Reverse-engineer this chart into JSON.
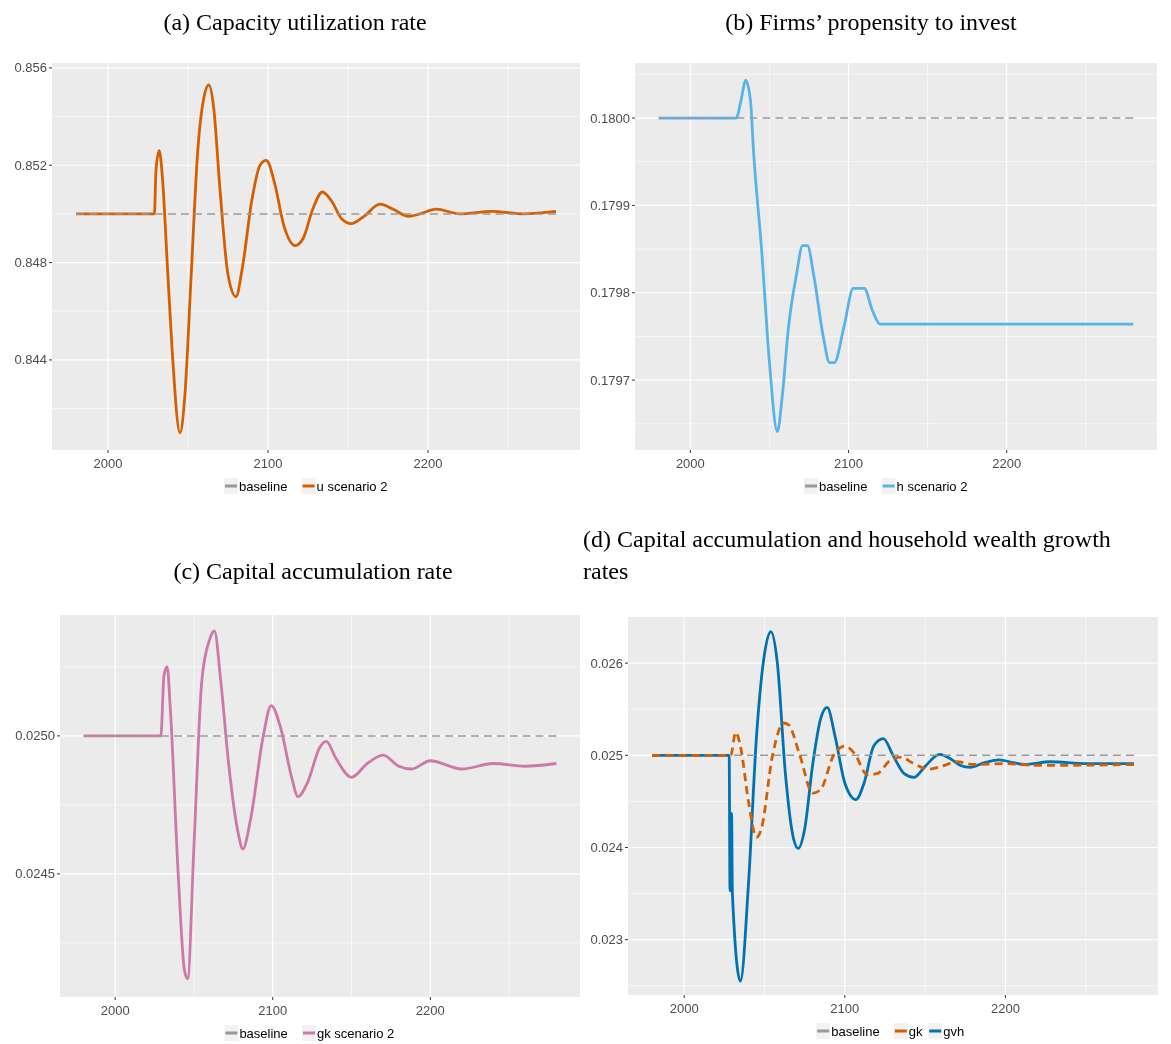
{
  "chart_data": [
    {
      "type": "line",
      "title": "(a) Capacity utilization rate",
      "xlim": [
        1965,
        2295
      ],
      "xticks": [
        2000,
        2100,
        2200
      ],
      "ylim": [
        0.8403,
        0.8562
      ],
      "yticks": [
        0.844,
        0.848,
        0.852,
        0.856
      ],
      "grid": true,
      "legend": "bottom",
      "series": [
        {
          "name": "baseline",
          "color": "#999999",
          "line_style": "dashed",
          "x": [
            1980,
            2280
          ],
          "values": [
            0.85,
            0.85
          ]
        },
        {
          "name": "u scenario 2",
          "color": "#d55e00",
          "line_style": "solid",
          "x": [
            1980,
            2029,
            2030,
            2032,
            2034,
            2037,
            2040,
            2045,
            2048,
            2052,
            2056,
            2060,
            2063,
            2066,
            2070,
            2075,
            2080,
            2084,
            2090,
            2095,
            2099,
            2104,
            2110,
            2117,
            2122,
            2128,
            2134,
            2140,
            2146,
            2152,
            2160,
            2170,
            2178,
            2188,
            2195,
            2205,
            2220,
            2240,
            2260,
            2280
          ],
          "values": [
            0.85,
            0.85,
            0.8518,
            0.8526,
            0.8515,
            0.848,
            0.8445,
            0.841,
            0.8425,
            0.8475,
            0.8525,
            0.8548,
            0.8553,
            0.8544,
            0.851,
            0.8475,
            0.8466,
            0.8478,
            0.8506,
            0.852,
            0.8522,
            0.8513,
            0.8495,
            0.8487,
            0.849,
            0.8502,
            0.8509,
            0.8505,
            0.8498,
            0.8496,
            0.8499,
            0.8504,
            0.8502,
            0.8499,
            0.85,
            0.8502,
            0.85,
            0.8501,
            0.85,
            0.8501
          ]
        }
      ]
    },
    {
      "type": "line",
      "title": "(b) Firms’ propensity to invest",
      "xlim": [
        1965,
        2295
      ],
      "xticks": [
        2000,
        2100,
        2200
      ],
      "ylim": [
        0.17962,
        0.180063
      ],
      "yticks": [
        0.1797,
        0.1798,
        0.1799,
        {
          "value": 0.18,
          "label": "0.1800"
        }
      ],
      "grid": true,
      "legend": "bottom",
      "series": [
        {
          "name": "baseline",
          "color": "#999999",
          "line_style": "dashed",
          "x": [
            1980,
            2280
          ],
          "values": [
            0.18,
            0.18
          ]
        },
        {
          "name": "h scenario 2",
          "color": "#56b4e9",
          "line_style": "solid",
          "x": [
            1980,
            2029,
            2032,
            2035,
            2038,
            2040,
            2045,
            2050,
            2055,
            2058,
            2062,
            2067,
            2071,
            2074,
            2078,
            2084,
            2088,
            2091,
            2097,
            2103,
            2110,
            2115,
            2120,
            2280
          ],
          "values": [
            0.18,
            0.18,
            0.18002,
            0.180043,
            0.18002,
            0.17996,
            0.17985,
            0.17972,
            0.179641,
            0.17968,
            0.17976,
            0.17982,
            0.179854,
            0.179854,
            0.17982,
            0.17975,
            0.17972,
            0.17972,
            0.17976,
            0.179805,
            0.179805,
            0.17978,
            0.179764,
            0.179764
          ]
        }
      ]
    },
    {
      "type": "line",
      "title": "(c) Capital accumulation rate",
      "xlim": [
        1965,
        2295
      ],
      "xticks": [
        2000,
        2100,
        2200
      ],
      "ylim": [
        0.024054,
        0.025438
      ],
      "yticks": [
        0.0245,
        {
          "value": 0.025,
          "label": "0.0250"
        }
      ],
      "grid": true,
      "legend": "bottom",
      "series": [
        {
          "name": "baseline",
          "color": "#999999",
          "line_style": "dashed",
          "x": [
            1980,
            2280
          ],
          "values": [
            0.025,
            0.025
          ]
        },
        {
          "name": "gk scenario 2",
          "color": "#cc79a7",
          "line_style": "solid",
          "x": [
            1980,
            2029,
            2031,
            2033,
            2035,
            2040,
            2044,
            2046,
            2050,
            2055,
            2060,
            2063,
            2067,
            2072,
            2078,
            2081,
            2086,
            2094,
            2099,
            2105,
            2112,
            2116,
            2122,
            2130,
            2134,
            2140,
            2150,
            2160,
            2170,
            2180,
            2188,
            2200,
            2220,
            2240,
            2260,
            2280
          ],
          "values": [
            0.025,
            0.025,
            0.02522,
            0.02525,
            0.0251,
            0.0245,
            0.02415,
            0.02412,
            0.0246,
            0.0252,
            0.02535,
            0.02538,
            0.0252,
            0.0249,
            0.02465,
            0.02459,
            0.0247,
            0.025,
            0.02511,
            0.02503,
            0.02485,
            0.02478,
            0.02483,
            0.02496,
            0.02498,
            0.02492,
            0.02485,
            0.0249,
            0.02493,
            0.02489,
            0.02488,
            0.02491,
            0.02488,
            0.0249,
            0.02489,
            0.0249
          ]
        }
      ]
    },
    {
      "type": "line",
      "title": "(d) Capital accumulation and household wealth growth rates",
      "xlim": [
        1965,
        2295
      ],
      "xticks": [
        2000,
        2100,
        2200
      ],
      "ylim": [
        0.0224,
        0.0265
      ],
      "yticks": [
        0.023,
        0.024,
        0.025,
        0.026
      ],
      "grid": true,
      "legend": "bottom",
      "series": [
        {
          "name": "baseline",
          "color": "#999999",
          "line_style": "dashed",
          "x": [
            2031,
            2280
          ],
          "values": [
            0.025,
            0.025
          ]
        },
        {
          "name": "gk",
          "color": "#d55e00",
          "line_style": "dashed",
          "x": [
            1980,
            2029,
            2032,
            2035,
            2040,
            2045,
            2048,
            2055,
            2062,
            2065,
            2072,
            2080,
            2085,
            2093,
            2100,
            2106,
            2114,
            2120,
            2128,
            2135,
            2142,
            2152,
            2160,
            2170,
            2180,
            2200,
            2220,
            2280
          ],
          "values": [
            0.025,
            0.025,
            0.02525,
            0.0251,
            0.0245,
            0.02411,
            0.0242,
            0.025,
            0.02535,
            0.02533,
            0.025,
            0.02459,
            0.02463,
            0.025,
            0.0251,
            0.02502,
            0.02479,
            0.0248,
            0.02494,
            0.02498,
            0.02492,
            0.02485,
            0.02488,
            0.02493,
            0.0249,
            0.02491,
            0.02489,
            0.0249
          ]
        },
        {
          "name": "gvh",
          "color": "#0072b2",
          "line_style": "solid",
          "x": [
            1980,
            2028,
            2028.5,
            2029.5,
            2030,
            2035,
            2040,
            2045,
            2050,
            2054,
            2058,
            2063,
            2068,
            2071,
            2075,
            2080,
            2085,
            2089,
            2094,
            2100,
            2107,
            2112,
            2118,
            2124,
            2130,
            2137,
            2143,
            2150,
            2159,
            2166,
            2172,
            2178,
            2187,
            2196,
            2205,
            2212,
            2228,
            2250,
            2280
          ],
          "values": [
            0.025,
            0.025,
            0.02353,
            0.02437,
            0.0235,
            0.02255,
            0.0236,
            0.0252,
            0.0261,
            0.02634,
            0.026,
            0.0248,
            0.0241,
            0.02399,
            0.0242,
            0.0249,
            0.0254,
            0.02552,
            0.0252,
            0.0247,
            0.02452,
            0.0247,
            0.0251,
            0.02518,
            0.025,
            0.0248,
            0.02476,
            0.02488,
            0.02501,
            0.02496,
            0.02489,
            0.02487,
            0.02492,
            0.02495,
            0.02492,
            0.0249,
            0.02493,
            0.02491,
            0.02491
          ]
        }
      ]
    }
  ]
}
